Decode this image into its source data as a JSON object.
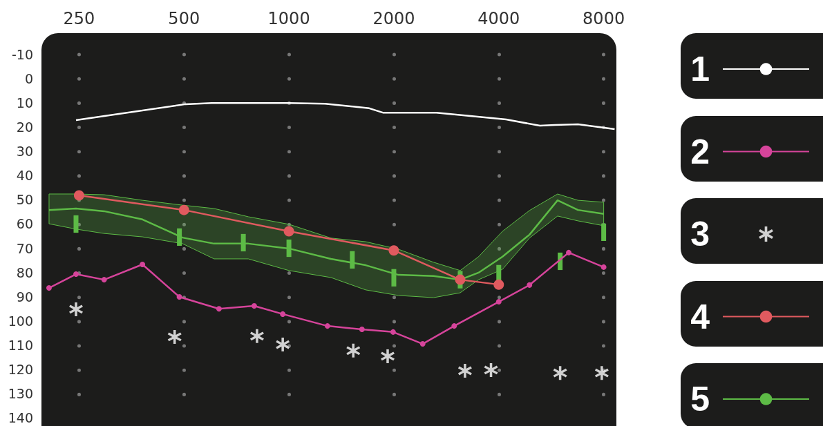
{
  "chart_data": {
    "type": "line",
    "log": "x",
    "xlim": [
      195,
      8700
    ],
    "xticks": [
      250,
      500,
      1000,
      2000,
      4000,
      8000
    ],
    "ylim": [
      140,
      -10
    ],
    "yticks": [
      -10,
      0,
      10,
      20,
      30,
      40,
      50,
      60,
      70,
      80,
      90,
      100,
      110,
      120,
      130,
      140
    ],
    "grid": "x",
    "legend": "right",
    "series": [
      {
        "name": "1",
        "color": "#ffffff",
        "marker": "none",
        "x": [
          245,
          505,
          600,
          1000,
          1270,
          1700,
          1860,
          2650,
          4200,
          5250,
          5800,
          6750,
          8600
        ],
        "values": [
          17.1,
          10.5,
          10,
          10,
          10.3,
          12.2,
          14,
          14,
          16.8,
          19.4,
          19.1,
          18.8,
          20.8
        ]
      },
      {
        "name": "2",
        "color": "#d6449b",
        "marker": "circle",
        "x": [
          205,
          245,
          295,
          380,
          485,
          630,
          795,
          960,
          1290,
          1620,
          1990,
          2420,
          2980,
          4000,
          4900,
          6350,
          8000
        ],
        "values": [
          86.4,
          80.7,
          83,
          76.7,
          90.1,
          95,
          93.8,
          97.2,
          102.1,
          103.5,
          104.6,
          109.5,
          102.1,
          92.1,
          85.2,
          71.8,
          77.8
        ]
      },
      {
        "name": "3",
        "type": "scatter",
        "color": "#ffffff",
        "marker": "cross",
        "x": [
          245,
          470,
          810,
          960,
          1530,
          1920,
          3200,
          3800,
          6000,
          7900
        ],
        "values": [
          95.2,
          106.6,
          106.3,
          109.8,
          112.3,
          114.6,
          120.6,
          120.3,
          121.5,
          121.5
        ]
      },
      {
        "name": "4",
        "color": "#e05a5f",
        "marker": "circle",
        "x": [
          250,
          500,
          1000,
          2000,
          3100,
          4000
        ],
        "values": [
          48.2,
          54.2,
          63,
          70.9,
          83,
          85
        ]
      },
      {
        "name": "5",
        "color": "#5dbb46",
        "marker": "none",
        "x": [
          205,
          245,
          295,
          380,
          495,
          610,
          765,
          1000,
          1320,
          1660,
          2060,
          2600,
          3100,
          3500,
          4100,
          4900,
          5900,
          6750,
          8000
        ],
        "values": [
          54.2,
          53.6,
          54.7,
          58.1,
          65.6,
          68.1,
          68.1,
          70.1,
          74.4,
          77,
          81,
          81.5,
          83,
          80.1,
          73.5,
          64.4,
          50.2,
          54.2,
          55.8
        ],
        "upper": [
          47.6,
          47.6,
          47.9,
          50.2,
          52.2,
          53.6,
          57,
          60.1,
          65.8,
          67.3,
          70.4,
          75.8,
          79.2,
          73.5,
          63,
          54.4,
          47.6,
          50.2,
          51
        ],
        "lower": [
          59.9,
          62.1,
          63.9,
          65.3,
          68.1,
          74.4,
          74.4,
          79.2,
          82.1,
          87.2,
          89.5,
          90.4,
          88.4,
          83,
          78.7,
          65.8,
          56.7,
          58.7,
          60.7
        ]
      },
      {
        "type": "bar",
        "color": "#5dbb46",
        "x": [
          245,
          485,
          740,
          1000,
          1520,
          2000,
          3100,
          4000,
          6000,
          8000
        ],
        "base": [
          56.4,
          61.8,
          64.1,
          66.4,
          71.2,
          78.6,
          79.4,
          76.9,
          71.8,
          59.8
        ],
        "values": [
          7.2,
          7.2,
          7.2,
          7.2,
          7.2,
          7.2,
          7.2,
          7.2,
          7.2,
          7.2
        ]
      }
    ]
  }
}
